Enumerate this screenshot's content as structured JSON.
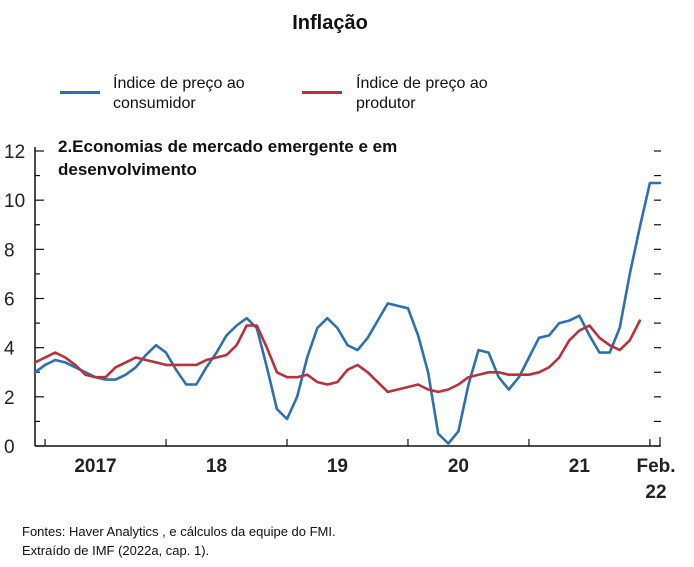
{
  "title": "Inflação",
  "legend": [
    {
      "line1": "Índice de preço ao",
      "line2": "consumidor",
      "color": "#2e6fb2"
    },
    {
      "line1": "Índice de preço ao",
      "line2": "produtor",
      "color": "#b8323c"
    }
  ],
  "source": {
    "line1": "Fontes: Haver Analytics , e cálculos da equipe do FMI.",
    "line2": "Extraído de IMF (2022a, cap. 1)."
  },
  "chart_data": {
    "type": "line",
    "title": "2.Economias de mercado emergente e em desenvolvimento",
    "subtitle_lines": [
      "2.Economias de mercado emergente e em",
      "desenvolvimento"
    ],
    "x_start": "2016-12",
    "x_end": "2022-02",
    "ylim": [
      0,
      12
    ],
    "yticks": [
      0,
      2,
      4,
      6,
      8,
      10,
      12
    ],
    "ytick_labels": [
      "0",
      "2",
      "4",
      "6",
      "8",
      "10",
      "12"
    ],
    "xtick_labels": [
      {
        "line1": "2017",
        "line2": "",
        "at": "2017-06"
      },
      {
        "line1": "18",
        "line2": "",
        "at": "2018-06"
      },
      {
        "line1": "19",
        "line2": "",
        "at": "2019-06"
      },
      {
        "line1": "20",
        "line2": "",
        "at": "2020-06"
      },
      {
        "line1": "21",
        "line2": "",
        "at": "2021-06"
      },
      {
        "line1": "Feb.",
        "line2": "22",
        "at": "2022-02"
      }
    ],
    "grid": false,
    "series": [
      {
        "name": "Índice de preço ao consumidor",
        "color": "#2e6fb2",
        "x": [
          "2016-12",
          "2017-01",
          "2017-02",
          "2017-03",
          "2017-04",
          "2017-05",
          "2017-06",
          "2017-07",
          "2017-08",
          "2017-09",
          "2017-10",
          "2017-11",
          "2017-12",
          "2018-01",
          "2018-02",
          "2018-03",
          "2018-04",
          "2018-05",
          "2018-06",
          "2018-07",
          "2018-08",
          "2018-09",
          "2018-10",
          "2018-11",
          "2018-12",
          "2019-01",
          "2019-02",
          "2019-03",
          "2019-04",
          "2019-05",
          "2019-06",
          "2019-07",
          "2019-08",
          "2019-09",
          "2019-10",
          "2019-11",
          "2019-12",
          "2020-01",
          "2020-02",
          "2020-03",
          "2020-04",
          "2020-05",
          "2020-06",
          "2020-07",
          "2020-08",
          "2020-09",
          "2020-10",
          "2020-11",
          "2020-12",
          "2021-01",
          "2021-02",
          "2021-03",
          "2021-04",
          "2021-05",
          "2021-06",
          "2021-07",
          "2021-08",
          "2021-09",
          "2021-10",
          "2021-11",
          "2021-12",
          "2022-01",
          "2022-02"
        ],
        "values": [
          3.0,
          3.3,
          3.5,
          3.4,
          3.2,
          3.0,
          2.8,
          2.7,
          2.7,
          2.9,
          3.2,
          3.7,
          4.1,
          3.8,
          3.1,
          2.5,
          2.5,
          3.2,
          3.8,
          4.5,
          4.9,
          5.2,
          4.8,
          3.2,
          1.5,
          1.1,
          2.0,
          3.6,
          4.8,
          5.2,
          4.8,
          4.1,
          3.9,
          4.4,
          5.1,
          5.8,
          5.7,
          5.6,
          4.5,
          3.0,
          0.5,
          0.1,
          0.6,
          2.5,
          3.9,
          3.8,
          2.8,
          2.3,
          2.8,
          3.6,
          4.4,
          4.5,
          5.0,
          5.1,
          5.3,
          4.5,
          3.8,
          3.8,
          4.8,
          7.0,
          8.9,
          10.7,
          10.7
        ]
      },
      {
        "name": "Índice de preço ao produtor",
        "color": "#b8323c",
        "x": [
          "2016-12",
          "2017-01",
          "2017-02",
          "2017-03",
          "2017-04",
          "2017-05",
          "2017-06",
          "2017-07",
          "2017-08",
          "2017-09",
          "2017-10",
          "2017-11",
          "2017-12",
          "2018-01",
          "2018-02",
          "2018-03",
          "2018-04",
          "2018-05",
          "2018-06",
          "2018-07",
          "2018-08",
          "2018-09",
          "2018-10",
          "2018-11",
          "2018-12",
          "2019-01",
          "2019-02",
          "2019-03",
          "2019-04",
          "2019-05",
          "2019-06",
          "2019-07",
          "2019-08",
          "2019-09",
          "2019-10",
          "2019-11",
          "2019-12",
          "2020-01",
          "2020-02",
          "2020-03",
          "2020-04",
          "2020-05",
          "2020-06",
          "2020-07",
          "2020-08",
          "2020-09",
          "2020-10",
          "2020-11",
          "2020-12",
          "2021-01",
          "2021-02",
          "2021-03",
          "2021-04",
          "2021-05",
          "2021-06",
          "2021-07",
          "2021-08",
          "2021-09",
          "2021-10",
          "2021-11",
          "2021-12"
        ],
        "values": [
          3.4,
          3.6,
          3.8,
          3.6,
          3.3,
          2.9,
          2.8,
          2.8,
          3.2,
          3.4,
          3.6,
          3.5,
          3.4,
          3.3,
          3.3,
          3.3,
          3.3,
          3.5,
          3.6,
          3.7,
          4.1,
          4.9,
          4.9,
          4.0,
          3.0,
          2.8,
          2.8,
          2.9,
          2.6,
          2.5,
          2.6,
          3.1,
          3.3,
          3.0,
          2.6,
          2.2,
          2.3,
          2.4,
          2.5,
          2.3,
          2.2,
          2.3,
          2.5,
          2.8,
          2.9,
          3.0,
          3.0,
          2.9,
          2.9,
          2.9,
          3.0,
          3.2,
          3.6,
          4.3,
          4.7,
          4.9,
          4.4,
          4.1,
          3.9,
          4.3,
          5.1
        ]
      }
    ]
  }
}
